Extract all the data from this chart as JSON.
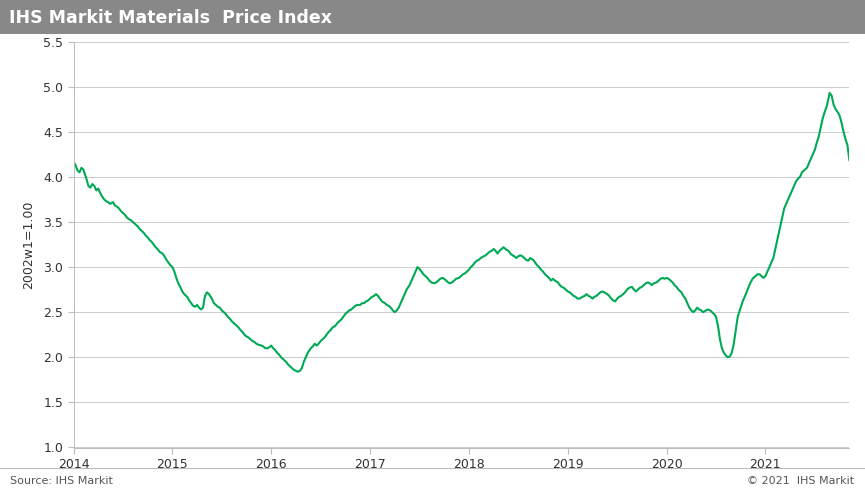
{
  "title": "IHS Markit Materials  Price Index",
  "ylabel": "2002w1=1.00",
  "source_left": "Source: IHS Markit",
  "source_right": "© 2021  IHS Markit",
  "title_bg_color": "#888888",
  "title_text_color": "#ffffff",
  "line_color": "#00aa55",
  "bg_color": "#ffffff",
  "ylim": [
    1.0,
    5.5
  ],
  "yticks": [
    1.0,
    1.5,
    2.0,
    2.5,
    3.0,
    3.5,
    4.0,
    4.5,
    5.0,
    5.5
  ],
  "grid_color": "#cccccc",
  "ylabel_color": "#333333",
  "tick_label_color": "#333333",
  "x_start_year": 2014.0,
  "x_end_year": 2021.85,
  "xticks": [
    2014,
    2015,
    2016,
    2017,
    2018,
    2019,
    2020,
    2021
  ],
  "data": [
    [
      2014.0,
      4.17
    ],
    [
      2014.02,
      4.13
    ],
    [
      2014.04,
      4.07
    ],
    [
      2014.06,
      4.05
    ],
    [
      2014.08,
      4.1
    ],
    [
      2014.1,
      4.08
    ],
    [
      2014.13,
      3.98
    ],
    [
      2014.15,
      3.9
    ],
    [
      2014.17,
      3.88
    ],
    [
      2014.19,
      3.92
    ],
    [
      2014.21,
      3.9
    ],
    [
      2014.23,
      3.85
    ],
    [
      2014.25,
      3.87
    ],
    [
      2014.27,
      3.82
    ],
    [
      2014.29,
      3.78
    ],
    [
      2014.31,
      3.75
    ],
    [
      2014.33,
      3.73
    ],
    [
      2014.35,
      3.72
    ],
    [
      2014.37,
      3.7
    ],
    [
      2014.4,
      3.72
    ],
    [
      2014.42,
      3.68
    ],
    [
      2014.44,
      3.67
    ],
    [
      2014.46,
      3.65
    ],
    [
      2014.48,
      3.62
    ],
    [
      2014.5,
      3.6
    ],
    [
      2014.52,
      3.58
    ],
    [
      2014.54,
      3.55
    ],
    [
      2014.56,
      3.53
    ],
    [
      2014.58,
      3.52
    ],
    [
      2014.6,
      3.5
    ],
    [
      2014.62,
      3.48
    ],
    [
      2014.65,
      3.45
    ],
    [
      2014.67,
      3.42
    ],
    [
      2014.69,
      3.4
    ],
    [
      2014.71,
      3.38
    ],
    [
      2014.73,
      3.35
    ],
    [
      2014.75,
      3.33
    ],
    [
      2014.77,
      3.3
    ],
    [
      2014.79,
      3.28
    ],
    [
      2014.81,
      3.25
    ],
    [
      2014.83,
      3.22
    ],
    [
      2014.85,
      3.2
    ],
    [
      2014.87,
      3.17
    ],
    [
      2014.9,
      3.15
    ],
    [
      2014.92,
      3.12
    ],
    [
      2014.94,
      3.08
    ],
    [
      2014.96,
      3.05
    ],
    [
      2014.98,
      3.02
    ],
    [
      2015.0,
      3.0
    ],
    [
      2015.02,
      2.95
    ],
    [
      2015.04,
      2.88
    ],
    [
      2015.06,
      2.82
    ],
    [
      2015.08,
      2.78
    ],
    [
      2015.1,
      2.73
    ],
    [
      2015.12,
      2.7
    ],
    [
      2015.15,
      2.67
    ],
    [
      2015.17,
      2.63
    ],
    [
      2015.19,
      2.6
    ],
    [
      2015.21,
      2.57
    ],
    [
      2015.23,
      2.56
    ],
    [
      2015.25,
      2.58
    ],
    [
      2015.27,
      2.55
    ],
    [
      2015.29,
      2.53
    ],
    [
      2015.31,
      2.55
    ],
    [
      2015.33,
      2.68
    ],
    [
      2015.35,
      2.72
    ],
    [
      2015.37,
      2.7
    ],
    [
      2015.4,
      2.65
    ],
    [
      2015.42,
      2.6
    ],
    [
      2015.44,
      2.58
    ],
    [
      2015.46,
      2.56
    ],
    [
      2015.48,
      2.55
    ],
    [
      2015.5,
      2.52
    ],
    [
      2015.52,
      2.5
    ],
    [
      2015.54,
      2.48
    ],
    [
      2015.56,
      2.45
    ],
    [
      2015.58,
      2.43
    ],
    [
      2015.6,
      2.4
    ],
    [
      2015.62,
      2.38
    ],
    [
      2015.65,
      2.35
    ],
    [
      2015.67,
      2.33
    ],
    [
      2015.69,
      2.3
    ],
    [
      2015.71,
      2.28
    ],
    [
      2015.73,
      2.25
    ],
    [
      2015.75,
      2.23
    ],
    [
      2015.77,
      2.22
    ],
    [
      2015.79,
      2.2
    ],
    [
      2015.81,
      2.18
    ],
    [
      2015.83,
      2.17
    ],
    [
      2015.85,
      2.15
    ],
    [
      2015.87,
      2.14
    ],
    [
      2015.9,
      2.13
    ],
    [
      2015.92,
      2.12
    ],
    [
      2015.94,
      2.1
    ],
    [
      2015.96,
      2.1
    ],
    [
      2015.98,
      2.11
    ],
    [
      2016.0,
      2.13
    ],
    [
      2016.02,
      2.1
    ],
    [
      2016.04,
      2.08
    ],
    [
      2016.06,
      2.05
    ],
    [
      2016.08,
      2.03
    ],
    [
      2016.1,
      2.0
    ],
    [
      2016.12,
      1.98
    ],
    [
      2016.15,
      1.95
    ],
    [
      2016.17,
      1.92
    ],
    [
      2016.19,
      1.9
    ],
    [
      2016.21,
      1.88
    ],
    [
      2016.23,
      1.86
    ],
    [
      2016.25,
      1.85
    ],
    [
      2016.27,
      1.84
    ],
    [
      2016.29,
      1.85
    ],
    [
      2016.31,
      1.88
    ],
    [
      2016.33,
      1.95
    ],
    [
      2016.35,
      2.0
    ],
    [
      2016.37,
      2.05
    ],
    [
      2016.4,
      2.1
    ],
    [
      2016.42,
      2.12
    ],
    [
      2016.44,
      2.15
    ],
    [
      2016.46,
      2.13
    ],
    [
      2016.48,
      2.15
    ],
    [
      2016.5,
      2.18
    ],
    [
      2016.52,
      2.2
    ],
    [
      2016.54,
      2.22
    ],
    [
      2016.56,
      2.25
    ],
    [
      2016.58,
      2.28
    ],
    [
      2016.6,
      2.3
    ],
    [
      2016.62,
      2.33
    ],
    [
      2016.65,
      2.35
    ],
    [
      2016.67,
      2.38
    ],
    [
      2016.69,
      2.4
    ],
    [
      2016.71,
      2.42
    ],
    [
      2016.73,
      2.45
    ],
    [
      2016.75,
      2.48
    ],
    [
      2016.77,
      2.5
    ],
    [
      2016.79,
      2.52
    ],
    [
      2016.81,
      2.53
    ],
    [
      2016.83,
      2.55
    ],
    [
      2016.85,
      2.57
    ],
    [
      2016.87,
      2.58
    ],
    [
      2016.9,
      2.58
    ],
    [
      2016.92,
      2.6
    ],
    [
      2016.94,
      2.6
    ],
    [
      2016.96,
      2.62
    ],
    [
      2016.98,
      2.63
    ],
    [
      2017.0,
      2.65
    ],
    [
      2017.02,
      2.67
    ],
    [
      2017.04,
      2.68
    ],
    [
      2017.06,
      2.7
    ],
    [
      2017.08,
      2.68
    ],
    [
      2017.1,
      2.65
    ],
    [
      2017.12,
      2.62
    ],
    [
      2017.15,
      2.6
    ],
    [
      2017.17,
      2.58
    ],
    [
      2017.19,
      2.57
    ],
    [
      2017.21,
      2.55
    ],
    [
      2017.23,
      2.52
    ],
    [
      2017.25,
      2.5
    ],
    [
      2017.27,
      2.52
    ],
    [
      2017.29,
      2.55
    ],
    [
      2017.31,
      2.6
    ],
    [
      2017.33,
      2.65
    ],
    [
      2017.35,
      2.7
    ],
    [
      2017.37,
      2.75
    ],
    [
      2017.4,
      2.8
    ],
    [
      2017.42,
      2.85
    ],
    [
      2017.44,
      2.9
    ],
    [
      2017.46,
      2.95
    ],
    [
      2017.48,
      3.0
    ],
    [
      2017.5,
      2.98
    ],
    [
      2017.52,
      2.95
    ],
    [
      2017.54,
      2.92
    ],
    [
      2017.56,
      2.9
    ],
    [
      2017.58,
      2.88
    ],
    [
      2017.6,
      2.85
    ],
    [
      2017.62,
      2.83
    ],
    [
      2017.65,
      2.82
    ],
    [
      2017.67,
      2.83
    ],
    [
      2017.69,
      2.85
    ],
    [
      2017.71,
      2.87
    ],
    [
      2017.73,
      2.88
    ],
    [
      2017.75,
      2.87
    ],
    [
      2017.77,
      2.85
    ],
    [
      2017.79,
      2.83
    ],
    [
      2017.81,
      2.82
    ],
    [
      2017.83,
      2.83
    ],
    [
      2017.85,
      2.85
    ],
    [
      2017.87,
      2.87
    ],
    [
      2017.9,
      2.88
    ],
    [
      2017.92,
      2.9
    ],
    [
      2017.94,
      2.92
    ],
    [
      2017.96,
      2.93
    ],
    [
      2017.98,
      2.95
    ],
    [
      2018.0,
      2.97
    ],
    [
      2018.02,
      3.0
    ],
    [
      2018.04,
      3.02
    ],
    [
      2018.06,
      3.05
    ],
    [
      2018.08,
      3.07
    ],
    [
      2018.1,
      3.08
    ],
    [
      2018.12,
      3.1
    ],
    [
      2018.15,
      3.12
    ],
    [
      2018.17,
      3.13
    ],
    [
      2018.19,
      3.15
    ],
    [
      2018.21,
      3.17
    ],
    [
      2018.23,
      3.18
    ],
    [
      2018.25,
      3.2
    ],
    [
      2018.27,
      3.18
    ],
    [
      2018.29,
      3.15
    ],
    [
      2018.31,
      3.18
    ],
    [
      2018.33,
      3.2
    ],
    [
      2018.35,
      3.22
    ],
    [
      2018.37,
      3.2
    ],
    [
      2018.4,
      3.18
    ],
    [
      2018.42,
      3.15
    ],
    [
      2018.44,
      3.13
    ],
    [
      2018.46,
      3.12
    ],
    [
      2018.48,
      3.1
    ],
    [
      2018.5,
      3.12
    ],
    [
      2018.52,
      3.13
    ],
    [
      2018.54,
      3.12
    ],
    [
      2018.56,
      3.1
    ],
    [
      2018.58,
      3.08
    ],
    [
      2018.6,
      3.07
    ],
    [
      2018.62,
      3.1
    ],
    [
      2018.65,
      3.08
    ],
    [
      2018.67,
      3.05
    ],
    [
      2018.69,
      3.02
    ],
    [
      2018.71,
      3.0
    ],
    [
      2018.73,
      2.97
    ],
    [
      2018.75,
      2.95
    ],
    [
      2018.77,
      2.92
    ],
    [
      2018.79,
      2.9
    ],
    [
      2018.81,
      2.88
    ],
    [
      2018.83,
      2.85
    ],
    [
      2018.85,
      2.87
    ],
    [
      2018.87,
      2.85
    ],
    [
      2018.9,
      2.83
    ],
    [
      2018.92,
      2.8
    ],
    [
      2018.94,
      2.78
    ],
    [
      2018.96,
      2.77
    ],
    [
      2018.98,
      2.75
    ],
    [
      2019.0,
      2.73
    ],
    [
      2019.02,
      2.72
    ],
    [
      2019.04,
      2.7
    ],
    [
      2019.06,
      2.68
    ],
    [
      2019.08,
      2.67
    ],
    [
      2019.1,
      2.65
    ],
    [
      2019.12,
      2.65
    ],
    [
      2019.15,
      2.67
    ],
    [
      2019.17,
      2.68
    ],
    [
      2019.19,
      2.7
    ],
    [
      2019.21,
      2.68
    ],
    [
      2019.23,
      2.67
    ],
    [
      2019.25,
      2.65
    ],
    [
      2019.27,
      2.67
    ],
    [
      2019.29,
      2.68
    ],
    [
      2019.31,
      2.7
    ],
    [
      2019.33,
      2.72
    ],
    [
      2019.35,
      2.73
    ],
    [
      2019.37,
      2.72
    ],
    [
      2019.4,
      2.7
    ],
    [
      2019.42,
      2.68
    ],
    [
      2019.44,
      2.65
    ],
    [
      2019.46,
      2.63
    ],
    [
      2019.48,
      2.62
    ],
    [
      2019.5,
      2.65
    ],
    [
      2019.52,
      2.67
    ],
    [
      2019.54,
      2.68
    ],
    [
      2019.56,
      2.7
    ],
    [
      2019.58,
      2.72
    ],
    [
      2019.6,
      2.75
    ],
    [
      2019.62,
      2.77
    ],
    [
      2019.65,
      2.78
    ],
    [
      2019.67,
      2.75
    ],
    [
      2019.69,
      2.73
    ],
    [
      2019.71,
      2.75
    ],
    [
      2019.73,
      2.77
    ],
    [
      2019.75,
      2.78
    ],
    [
      2019.77,
      2.8
    ],
    [
      2019.79,
      2.82
    ],
    [
      2019.81,
      2.83
    ],
    [
      2019.83,
      2.82
    ],
    [
      2019.85,
      2.8
    ],
    [
      2019.87,
      2.82
    ],
    [
      2019.9,
      2.83
    ],
    [
      2019.92,
      2.85
    ],
    [
      2019.94,
      2.87
    ],
    [
      2019.96,
      2.88
    ],
    [
      2019.98,
      2.87
    ],
    [
      2020.0,
      2.88
    ],
    [
      2020.02,
      2.87
    ],
    [
      2020.04,
      2.85
    ],
    [
      2020.06,
      2.83
    ],
    [
      2020.08,
      2.8
    ],
    [
      2020.1,
      2.78
    ],
    [
      2020.12,
      2.75
    ],
    [
      2020.15,
      2.72
    ],
    [
      2020.17,
      2.68
    ],
    [
      2020.19,
      2.65
    ],
    [
      2020.21,
      2.6
    ],
    [
      2020.23,
      2.55
    ],
    [
      2020.25,
      2.52
    ],
    [
      2020.27,
      2.5
    ],
    [
      2020.29,
      2.52
    ],
    [
      2020.31,
      2.55
    ],
    [
      2020.33,
      2.53
    ],
    [
      2020.35,
      2.52
    ],
    [
      2020.37,
      2.5
    ],
    [
      2020.4,
      2.52
    ],
    [
      2020.42,
      2.53
    ],
    [
      2020.44,
      2.52
    ],
    [
      2020.46,
      2.5
    ],
    [
      2020.48,
      2.48
    ],
    [
      2020.5,
      2.45
    ],
    [
      2020.52,
      2.35
    ],
    [
      2020.54,
      2.2
    ],
    [
      2020.56,
      2.1
    ],
    [
      2020.58,
      2.05
    ],
    [
      2020.6,
      2.02
    ],
    [
      2020.62,
      2.0
    ],
    [
      2020.64,
      2.01
    ],
    [
      2020.66,
      2.05
    ],
    [
      2020.68,
      2.15
    ],
    [
      2020.7,
      2.3
    ],
    [
      2020.72,
      2.45
    ],
    [
      2020.75,
      2.55
    ],
    [
      2020.77,
      2.62
    ],
    [
      2020.79,
      2.67
    ],
    [
      2020.81,
      2.72
    ],
    [
      2020.83,
      2.78
    ],
    [
      2020.85,
      2.83
    ],
    [
      2020.87,
      2.87
    ],
    [
      2020.9,
      2.9
    ],
    [
      2020.92,
      2.92
    ],
    [
      2020.94,
      2.92
    ],
    [
      2020.96,
      2.9
    ],
    [
      2020.98,
      2.88
    ],
    [
      2021.0,
      2.9
    ],
    [
      2021.02,
      2.95
    ],
    [
      2021.04,
      3.0
    ],
    [
      2021.06,
      3.05
    ],
    [
      2021.08,
      3.1
    ],
    [
      2021.1,
      3.2
    ],
    [
      2021.12,
      3.3
    ],
    [
      2021.15,
      3.45
    ],
    [
      2021.17,
      3.55
    ],
    [
      2021.19,
      3.65
    ],
    [
      2021.21,
      3.7
    ],
    [
      2021.23,
      3.75
    ],
    [
      2021.25,
      3.8
    ],
    [
      2021.27,
      3.85
    ],
    [
      2021.29,
      3.9
    ],
    [
      2021.31,
      3.95
    ],
    [
      2021.33,
      3.98
    ],
    [
      2021.35,
      4.0
    ],
    [
      2021.37,
      4.05
    ],
    [
      2021.4,
      4.08
    ],
    [
      2021.42,
      4.1
    ],
    [
      2021.44,
      4.15
    ],
    [
      2021.46,
      4.2
    ],
    [
      2021.48,
      4.25
    ],
    [
      2021.5,
      4.3
    ],
    [
      2021.52,
      4.38
    ],
    [
      2021.54,
      4.45
    ],
    [
      2021.56,
      4.55
    ],
    [
      2021.58,
      4.65
    ],
    [
      2021.6,
      4.72
    ],
    [
      2021.62,
      4.78
    ],
    [
      2021.64,
      4.88
    ],
    [
      2021.65,
      4.93
    ],
    [
      2021.67,
      4.9
    ],
    [
      2021.69,
      4.8
    ],
    [
      2021.71,
      4.75
    ],
    [
      2021.73,
      4.72
    ],
    [
      2021.75,
      4.68
    ],
    [
      2021.77,
      4.6
    ],
    [
      2021.79,
      4.5
    ],
    [
      2021.81,
      4.42
    ],
    [
      2021.83,
      4.35
    ],
    [
      2021.85,
      4.18
    ]
  ]
}
